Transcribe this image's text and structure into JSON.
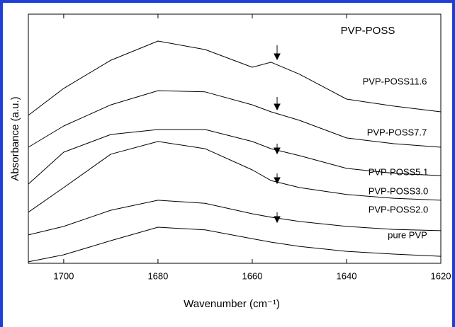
{
  "chart_data": {
    "type": "line",
    "title": "PVP-POSS",
    "x_label": "Wavenumber (cm⁻¹)",
    "y_label": "Absorbance (a.u.)",
    "x": [
      1707.5,
      1700,
      1690,
      1680,
      1670,
      1660,
      1656,
      1650,
      1640,
      1630,
      1620
    ],
    "xlim": [
      1707.5,
      1620
    ],
    "xticks": [
      1700,
      1680,
      1660,
      1640,
      1620
    ],
    "ylim": [
      0,
      100
    ],
    "series": [
      {
        "name": "PVP-POSS11.6",
        "color": "#000000",
        "values": [
          59.4,
          70.2,
          81.5,
          89.2,
          85.8,
          78.7,
          80.7,
          75.9,
          65.9,
          63.1,
          60.8
        ]
      },
      {
        "name": "PVP-POSS7.7",
        "color": "#000000",
        "values": [
          46.6,
          55.1,
          63.6,
          69.3,
          68.8,
          63.6,
          60.8,
          57.4,
          50.3,
          48.0,
          46.6
        ]
      },
      {
        "name": "PVP-POSS5.1",
        "color": "#000000",
        "values": [
          31.8,
          44.6,
          51.7,
          53.7,
          53.7,
          48.9,
          46.0,
          43.2,
          38.1,
          36.1,
          35.2
        ]
      },
      {
        "name": "PVP-POSS3.0",
        "color": "#000000",
        "values": [
          20.5,
          30.4,
          43.8,
          48.9,
          46.0,
          37.5,
          33.2,
          30.4,
          27.6,
          26.1,
          25.3
        ]
      },
      {
        "name": "PVP-POSS2.0",
        "color": "#000000",
        "values": [
          11.4,
          14.8,
          21.3,
          25.3,
          24.1,
          19.9,
          18.5,
          16.8,
          14.8,
          13.6,
          13.1
        ]
      },
      {
        "name": "pure PVP",
        "color": "#000000",
        "values": [
          0.6,
          3.4,
          9.1,
          14.5,
          13.4,
          9.9,
          8.5,
          6.8,
          4.8,
          3.7,
          2.8
        ]
      }
    ]
  }
}
